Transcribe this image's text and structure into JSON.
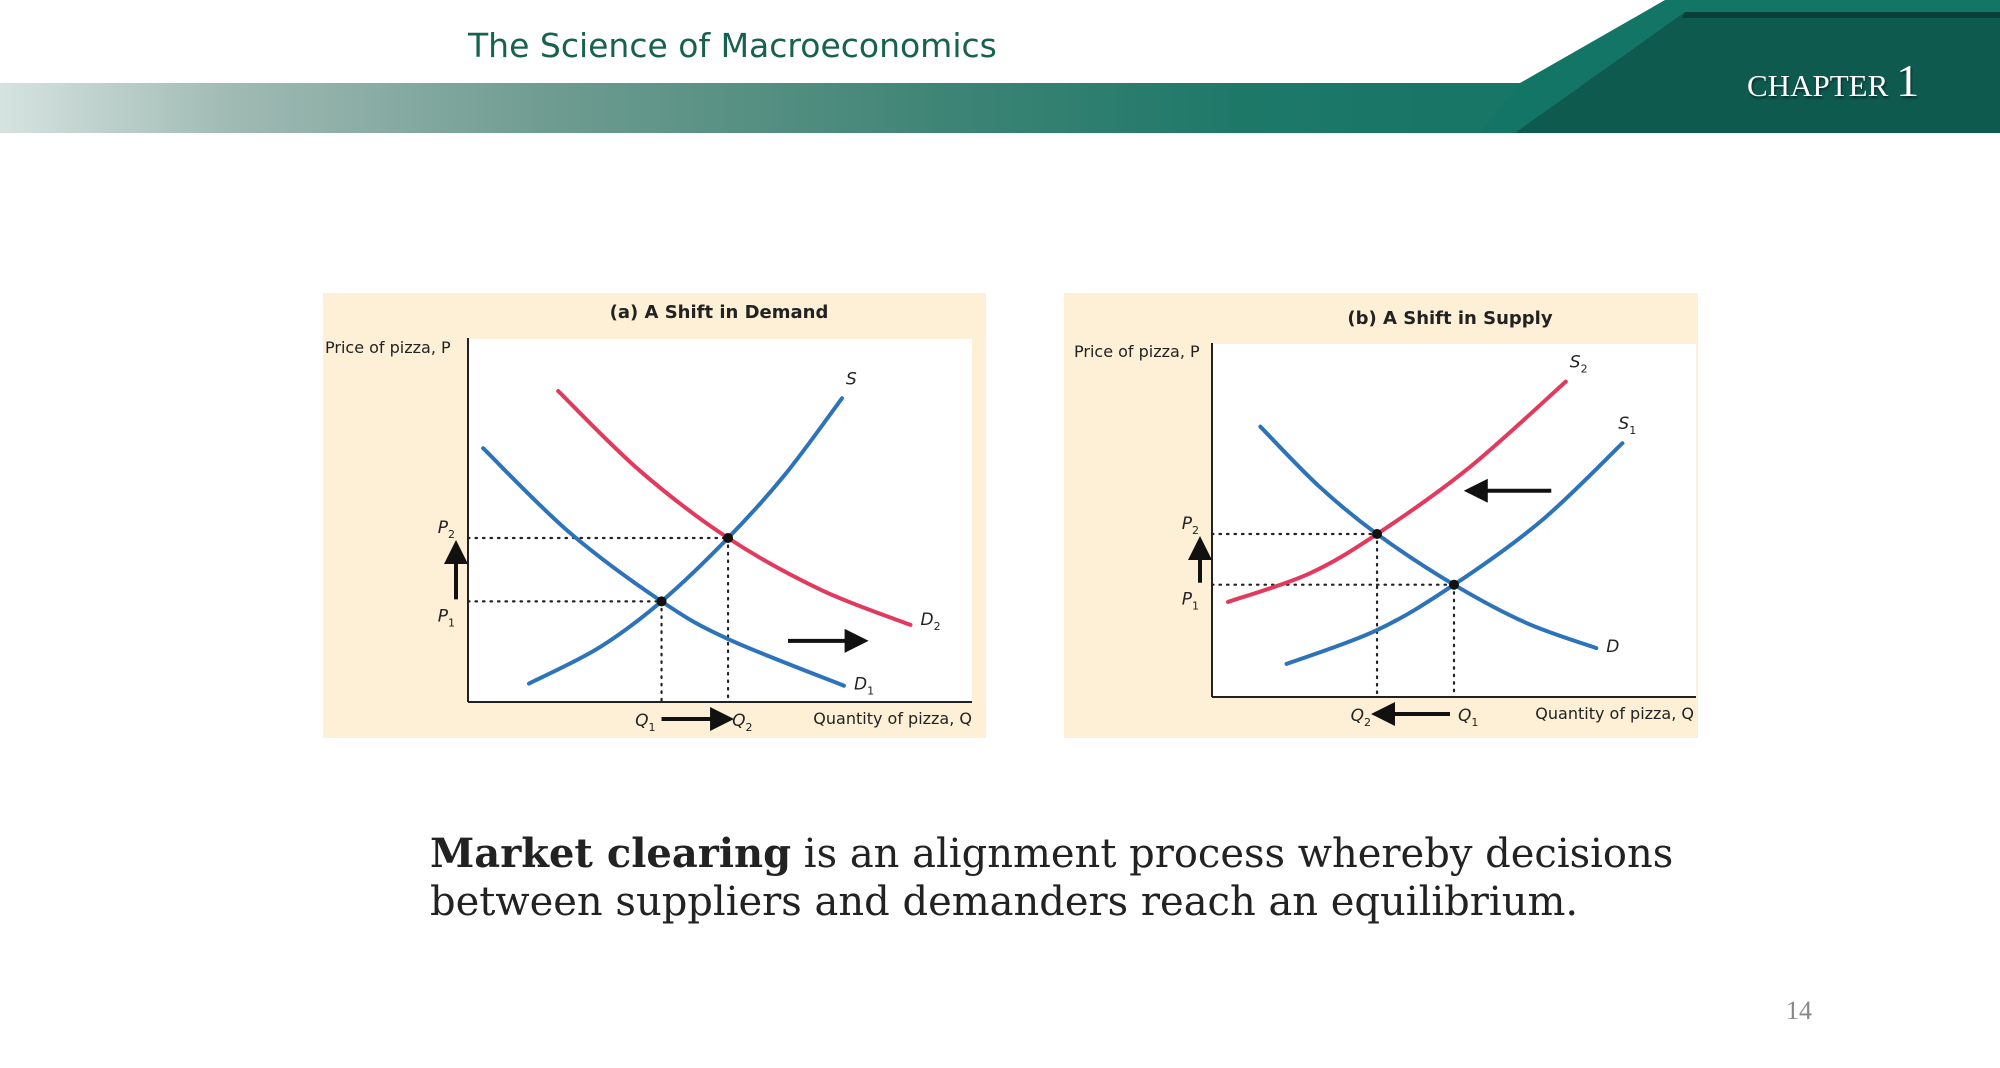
{
  "header": {
    "title": "The Science of Macroeconomics",
    "chapter_label": "CHAPTER",
    "chapter_number": "1"
  },
  "colors": {
    "header_green": "#167565",
    "header_dark": "#0f5a4f",
    "title_text": "#17614f",
    "panel_bg": "#fdf0d6",
    "blue_curve": "#2d73b9",
    "red_curve": "#e23a5e"
  },
  "chart_data": [
    {
      "type": "line",
      "title": "(a) A Shift in Demand",
      "ylabel": "Price of pizza, P",
      "xlabel": "Quantity of pizza, Q",
      "xlim": [
        0,
        10
      ],
      "ylim": [
        0,
        10
      ],
      "grid": false,
      "series": [
        {
          "name": "S",
          "color": "blue",
          "points": [
            [
              1.21,
              0.51
            ],
            [
              2.6,
              1.5
            ],
            [
              3.84,
              2.78
            ],
            [
              5.16,
              4.53
            ],
            [
              6.3,
              6.3
            ],
            [
              7.42,
              8.39
            ]
          ]
        },
        {
          "name": "D1",
          "color": "blue",
          "points": [
            [
              0.3,
              7.01
            ],
            [
              2.0,
              4.7
            ],
            [
              3.84,
              2.78
            ],
            [
              5.16,
              1.74
            ],
            [
              7.46,
              0.45
            ]
          ]
        },
        {
          "name": "D2",
          "color": "red",
          "points": [
            [
              1.79,
              8.59
            ],
            [
              3.4,
              6.4
            ],
            [
              5.16,
              4.53
            ],
            [
              7.0,
              3.1
            ],
            [
              8.78,
              2.13
            ]
          ]
        }
      ],
      "equilibria": [
        [
          3.84,
          2.78
        ],
        [
          5.16,
          4.53
        ]
      ],
      "price_labels": [
        "P1",
        "P2"
      ],
      "quantity_labels": [
        "Q1",
        "Q2"
      ],
      "shift_arrow": {
        "from": [
          6.35,
          1.69
        ],
        "to": [
          7.71,
          1.69
        ],
        "direction": "right"
      }
    },
    {
      "type": "line",
      "title": "(b) A Shift in Supply",
      "ylabel": "Price of pizza, P",
      "xlabel": "Quantity of pizza, Q",
      "xlim": [
        0,
        10
      ],
      "ylim": [
        0,
        10
      ],
      "grid": false,
      "series": [
        {
          "name": "S1",
          "color": "blue",
          "points": [
            [
              1.54,
              0.94
            ],
            [
              3.41,
              1.9
            ],
            [
              5.0,
              3.19
            ],
            [
              6.8,
              5.0
            ],
            [
              8.48,
              7.21
            ]
          ]
        },
        {
          "name": "S2",
          "color": "red",
          "points": [
            [
              0.33,
              2.7
            ],
            [
              2.0,
              3.5
            ],
            [
              3.41,
              4.63
            ],
            [
              5.3,
              6.5
            ],
            [
              7.31,
              8.96
            ]
          ]
        },
        {
          "name": "D",
          "color": "blue",
          "points": [
            [
              1.0,
              7.68
            ],
            [
              2.2,
              6.0
            ],
            [
              3.41,
              4.63
            ],
            [
              5.0,
              3.19
            ],
            [
              6.5,
              2.1
            ],
            [
              7.94,
              1.39
            ]
          ]
        }
      ],
      "equilibria": [
        [
          3.41,
          4.63
        ],
        [
          5.0,
          3.19
        ]
      ],
      "price_labels": [
        "P1",
        "P2"
      ],
      "quantity_labels": [
        "Q2",
        "Q1"
      ],
      "shift_arrow": {
        "from": [
          7.01,
          5.86
        ],
        "to": [
          5.45,
          5.86
        ],
        "direction": "left"
      }
    }
  ],
  "body": {
    "term": "Market clearing",
    "text": " is an alignment process whereby decisions between suppliers and demanders reach an equilibrium."
  },
  "page_number": "14"
}
